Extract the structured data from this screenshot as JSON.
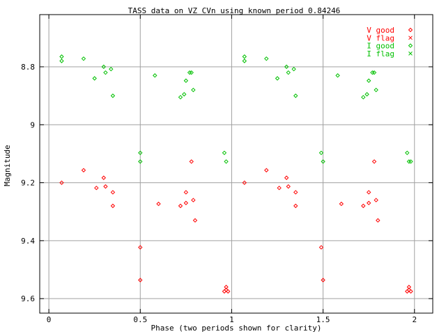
{
  "chart_data": {
    "type": "scatter",
    "title": "TASS data on VZ CVn  using known period 0.84246",
    "xlabel": "Phase (two periods shown for clarity)",
    "ylabel": "Magnitude",
    "xlim": [
      -0.05,
      2.1
    ],
    "ylim": [
      9.65,
      8.62
    ],
    "y_inverted": true,
    "grid": true,
    "legend_position": "top-right",
    "x_ticks": [
      0,
      0.5,
      1,
      1.5,
      2
    ],
    "x_tick_labels": [
      "0",
      "0.5",
      "1",
      "1.5",
      "2"
    ],
    "y_ticks": [
      8.8,
      9,
      9.2,
      9.4,
      9.6
    ],
    "y_tick_labels": [
      "8.8",
      "9",
      "9.2",
      "9.4",
      "9.6"
    ],
    "series": [
      {
        "name": "V good",
        "color": "#ff0000",
        "marker": "diamond",
        "points": [
          [
            0.07,
            9.2
          ],
          [
            0.19,
            9.157
          ],
          [
            0.26,
            9.218
          ],
          [
            0.3,
            9.183
          ],
          [
            0.31,
            9.213
          ],
          [
            0.35,
            9.233
          ],
          [
            0.35,
            9.28
          ],
          [
            0.5,
            9.423
          ],
          [
            0.5,
            9.536
          ],
          [
            0.6,
            9.273
          ],
          [
            0.72,
            9.28
          ],
          [
            0.75,
            9.233
          ],
          [
            0.75,
            9.27
          ],
          [
            0.78,
            9.127
          ],
          [
            0.79,
            9.26
          ],
          [
            0.8,
            9.33
          ],
          [
            0.96,
            9.575
          ],
          [
            0.97,
            9.57
          ],
          [
            0.97,
            9.56
          ],
          [
            0.98,
            9.575
          ],
          [
            1.07,
            9.2
          ],
          [
            1.19,
            9.157
          ],
          [
            1.26,
            9.218
          ],
          [
            1.3,
            9.183
          ],
          [
            1.31,
            9.213
          ],
          [
            1.35,
            9.233
          ],
          [
            1.35,
            9.28
          ],
          [
            1.49,
            9.423
          ],
          [
            1.5,
            9.536
          ],
          [
            1.6,
            9.273
          ],
          [
            1.72,
            9.28
          ],
          [
            1.75,
            9.233
          ],
          [
            1.75,
            9.27
          ],
          [
            1.78,
            9.127
          ],
          [
            1.79,
            9.26
          ],
          [
            1.8,
            9.33
          ],
          [
            1.96,
            9.575
          ],
          [
            1.97,
            9.57
          ],
          [
            1.97,
            9.56
          ],
          [
            1.98,
            9.575
          ]
        ]
      },
      {
        "name": "V flag",
        "color": "#ff0000",
        "marker": "cross",
        "points": []
      },
      {
        "name": "I good",
        "color": "#00c000",
        "marker": "diamond",
        "points": [
          [
            0.07,
            8.765
          ],
          [
            0.07,
            8.78
          ],
          [
            0.19,
            8.772
          ],
          [
            0.25,
            8.84
          ],
          [
            0.3,
            8.8
          ],
          [
            0.31,
            8.82
          ],
          [
            0.34,
            8.808
          ],
          [
            0.35,
            8.9
          ],
          [
            0.5,
            9.097
          ],
          [
            0.5,
            9.127
          ],
          [
            0.58,
            8.83
          ],
          [
            0.72,
            8.905
          ],
          [
            0.74,
            8.895
          ],
          [
            0.75,
            8.848
          ],
          [
            0.77,
            8.82
          ],
          [
            0.78,
            8.82
          ],
          [
            0.79,
            8.88
          ],
          [
            0.96,
            9.097
          ],
          [
            0.97,
            9.127
          ],
          [
            1.07,
            8.765
          ],
          [
            1.07,
            8.78
          ],
          [
            1.19,
            8.772
          ],
          [
            1.25,
            8.84
          ],
          [
            1.3,
            8.8
          ],
          [
            1.31,
            8.82
          ],
          [
            1.34,
            8.808
          ],
          [
            1.35,
            8.9
          ],
          [
            1.49,
            9.097
          ],
          [
            1.5,
            9.127
          ],
          [
            1.58,
            8.83
          ],
          [
            1.72,
            8.905
          ],
          [
            1.74,
            8.895
          ],
          [
            1.75,
            8.848
          ],
          [
            1.77,
            8.82
          ],
          [
            1.78,
            8.82
          ],
          [
            1.79,
            8.88
          ],
          [
            1.96,
            9.097
          ],
          [
            1.97,
            9.127
          ],
          [
            1.98,
            9.127
          ]
        ]
      },
      {
        "name": "I flag",
        "color": "#00c000",
        "marker": "cross",
        "points": []
      }
    ]
  }
}
